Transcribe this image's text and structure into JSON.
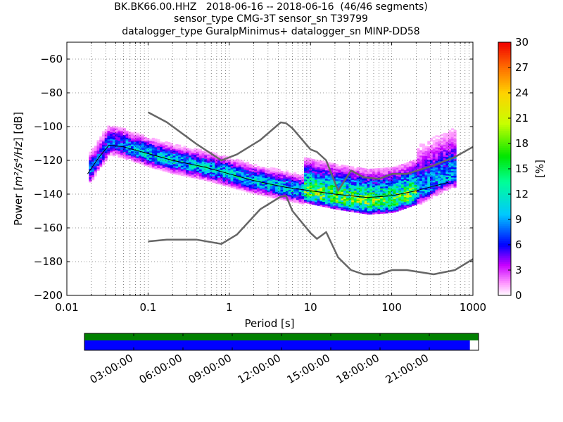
{
  "title_lines": [
    "BK.BK66.00.HHZ   2018-06-16 -- 2018-06-16  (46/46 segments)",
    "sensor_type CMG-3T sensor_sn T39799",
    "datalogger_type GuralpMinimus+ datalogger_sn MINP-DD58"
  ],
  "chart_data": {
    "type": "heatmap",
    "xlabel": "Period [s]",
    "ylabel_prefix": "Power [",
    "ylabel_math": "m²/s⁴/Hz",
    "ylabel_suffix": "] [dB]",
    "xscale": "log",
    "xlim": [
      0.01,
      1000
    ],
    "ylim": [
      -200,
      -50
    ],
    "x_ticks": [
      0.01,
      0.1,
      1,
      10,
      100,
      1000
    ],
    "x_tick_labels": [
      "0.01",
      "0.1",
      "1",
      "10",
      "100",
      "1000"
    ],
    "y_ticks": [
      -200,
      -180,
      -160,
      -140,
      -120,
      -100,
      -80,
      -60
    ],
    "y_tick_labels": [
      "−200",
      "−180",
      "−160",
      "−140",
      "−120",
      "−100",
      "−80",
      "−60"
    ],
    "grid": true,
    "colorbar": {
      "label": "[%]",
      "range": [
        0,
        30
      ],
      "ticks": [
        0,
        3,
        6,
        9,
        12,
        15,
        18,
        21,
        24,
        27,
        30
      ],
      "tick_labels": [
        "0",
        "3",
        "6",
        "9",
        "12",
        "15",
        "18",
        "21",
        "24",
        "27",
        "30"
      ],
      "colormap": "pqlx"
    },
    "nhnm": {
      "x": [
        0.1,
        0.17,
        0.4,
        0.8,
        1.24,
        2.4,
        4.3,
        5,
        6,
        10,
        12,
        15.6,
        21.9,
        31.6,
        45,
        70,
        101,
        154,
        328,
        600,
        1000
      ],
      "y": [
        -91.5,
        -97.4,
        -110.5,
        -120,
        -116.5,
        -108,
        -97.5,
        -98,
        -101,
        -113.5,
        -115,
        -120,
        -138,
        -126,
        -130,
        -131,
        -128,
        -128,
        -123,
        -118,
        -112
      ]
    },
    "nlnm": {
      "x": [
        0.1,
        0.17,
        0.4,
        0.8,
        1.24,
        2.4,
        4.3,
        5,
        6,
        10,
        12,
        15.6,
        21.9,
        31.6,
        45,
        70,
        101,
        154,
        328,
        600,
        1000
      ],
      "y": [
        -168,
        -167,
        -167,
        -169.5,
        -164,
        -149,
        -141.5,
        -141,
        -150,
        -163,
        -166.5,
        -162.5,
        -177.5,
        -185,
        -187.5,
        -187.5,
        -185,
        -185,
        -187.5,
        -185,
        -178.5
      ]
    },
    "mean_curve": {
      "x": [
        0.018,
        0.025,
        0.033,
        0.05,
        0.1,
        0.2,
        0.5,
        1,
        2,
        5,
        10,
        20,
        50,
        100,
        200,
        500
      ],
      "y": [
        -128,
        -118,
        -111,
        -112,
        -116,
        -120,
        -124,
        -128,
        -132,
        -136,
        -138,
        -140,
        -142,
        -141,
        -138,
        -133
      ]
    },
    "psd_density_ridge": {
      "x": [
        0.018,
        0.025,
        0.033,
        0.05,
        0.1,
        0.2,
        0.5,
        1,
        2,
        5,
        10,
        20,
        50,
        100,
        200,
        500
      ],
      "y": [
        -128,
        -118,
        -110,
        -112,
        -117,
        -121,
        -125,
        -129,
        -133,
        -137,
        -140,
        -143,
        -146,
        -145,
        -140,
        -130
      ]
    }
  },
  "time_coverage": {
    "tick_labels": [
      "03:00:00",
      "06:00:00",
      "09:00:00",
      "12:00:00",
      "15:00:00",
      "18:00:00",
      "21:00:00"
    ],
    "data_fraction": 0.978,
    "gap_color": "#008000",
    "data_color": "#0000ff"
  }
}
